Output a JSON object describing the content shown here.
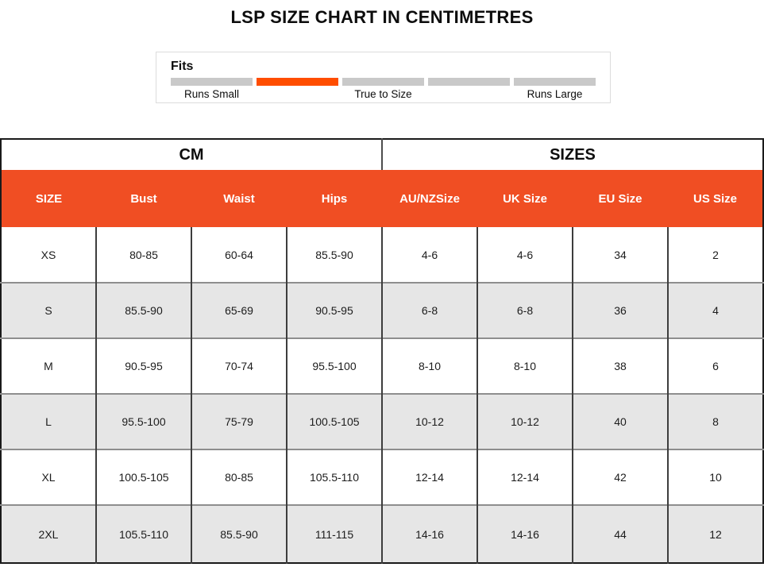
{
  "title": "LSP SIZE CHART IN CENTIMETRES",
  "fits": {
    "label": "Fits",
    "segments_total": 5,
    "active_segment_index": 1,
    "segment_colors": [
      "#C9C9C9",
      "#FF4D00",
      "#C9C9C9",
      "#C9C9C9",
      "#C9C9C9"
    ],
    "scale_labels": {
      "low": "Runs Small",
      "mid": "True to Size",
      "high": "Runs Large"
    }
  },
  "colors": {
    "header_orange": "#F04E23",
    "fits_active_orange": "#FF4D00",
    "alt_row_gray": "#E6E6E6",
    "segment_gray": "#C9C9C9"
  },
  "chart_data": {
    "type": "table",
    "title": "LSP SIZE CHART IN CENTIMETRES",
    "group_headers": [
      {
        "label": "CM",
        "span": 4
      },
      {
        "label": "SIZES",
        "span": 4
      }
    ],
    "columns": [
      "SIZE",
      "Bust",
      "Waist",
      "Hips",
      "AU/NZSize",
      "UK Size",
      "EU Size",
      "US Size"
    ],
    "rows": [
      [
        "XS",
        "80-85",
        "60-64",
        "85.5-90",
        "4-6",
        "4-6",
        "34",
        "2"
      ],
      [
        "S",
        "85.5-90",
        "65-69",
        "90.5-95",
        "6-8",
        "6-8",
        "36",
        "4"
      ],
      [
        "M",
        "90.5-95",
        "70-74",
        "95.5-100",
        "8-10",
        "8-10",
        "38",
        "6"
      ],
      [
        "L",
        "95.5-100",
        "75-79",
        "100.5-105",
        "10-12",
        "10-12",
        "40",
        "8"
      ],
      [
        "XL",
        "100.5-105",
        "80-85",
        "105.5-110",
        "12-14",
        "12-14",
        "42",
        "10"
      ],
      [
        "2XL",
        "105.5-110",
        "85.5-90",
        "111-115",
        "14-16",
        "14-16",
        "44",
        "12"
      ]
    ]
  }
}
